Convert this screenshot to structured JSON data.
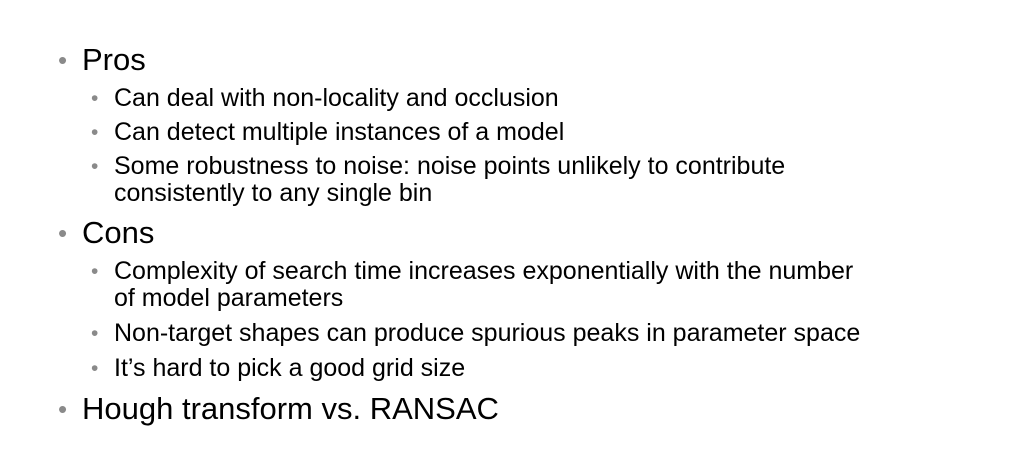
{
  "slide": {
    "pros": {
      "label": "Pros",
      "items": [
        "Can deal with non-locality and occlusion",
        "Can detect multiple instances of a model",
        "Some robustness to noise: noise points unlikely to contribute",
        "consistently to any single bin"
      ]
    },
    "cons": {
      "label": "Cons",
      "items": [
        "Complexity of search time increases exponentially with the number",
        "of model parameters",
        "Non-target shapes can produce spurious peaks in parameter space",
        "It’s hard to pick a good grid size"
      ]
    },
    "comparison": {
      "label": "Hough transform vs. RANSAC"
    },
    "bullet_glyph": "•"
  }
}
